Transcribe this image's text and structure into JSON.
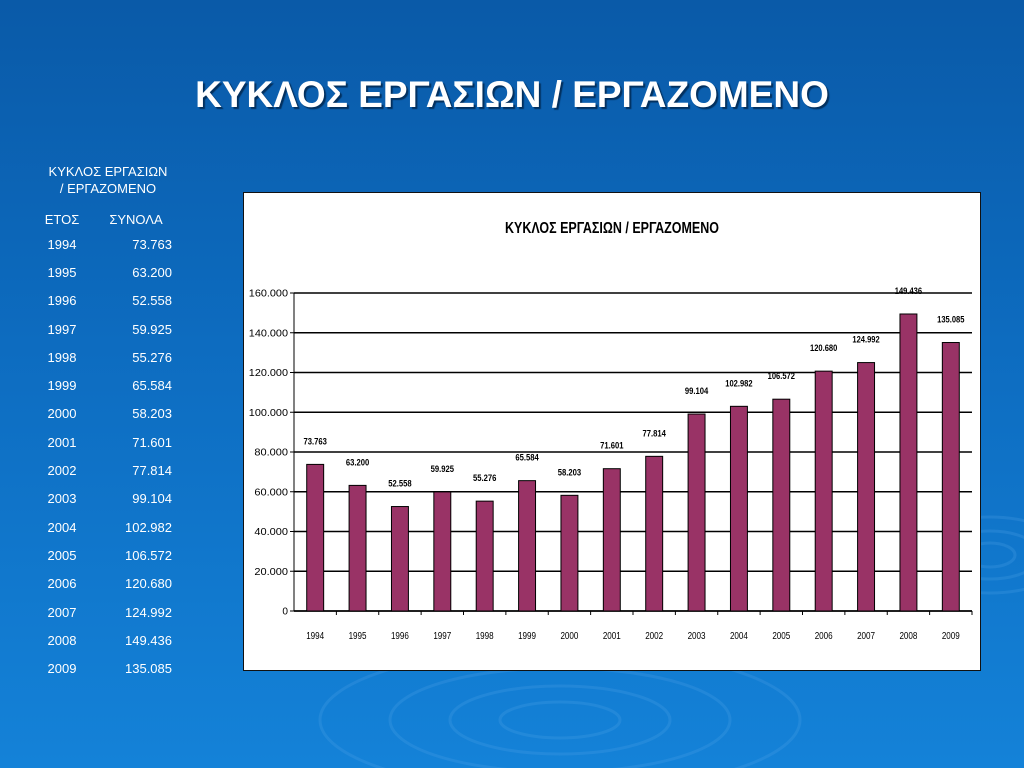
{
  "slide": {
    "title": "ΚΥΚΛΟΣ ΕΡΓΑΣΙΩΝ / ΕΡΓΑΖΟΜΕΝΟ"
  },
  "table": {
    "caption_line1": "ΚΥΚΛΟΣ ΕΡΓΑΣΙΩΝ",
    "caption_line2": "/ ΕΡΓΑΖΟΜΕΝΟ",
    "header_year": "ΕΤΟΣ",
    "header_total": "ΣΥΝΟΛΑ",
    "rows": [
      {
        "year": "1994",
        "total": "73.763"
      },
      {
        "year": "1995",
        "total": "63.200"
      },
      {
        "year": "1996",
        "total": "52.558"
      },
      {
        "year": "1997",
        "total": "59.925"
      },
      {
        "year": "1998",
        "total": "55.276"
      },
      {
        "year": "1999",
        "total": "65.584"
      },
      {
        "year": "2000",
        "total": "58.203"
      },
      {
        "year": "2001",
        "total": "71.601"
      },
      {
        "year": "2002",
        "total": "77.814"
      },
      {
        "year": "2003",
        "total": "99.104"
      },
      {
        "year": "2004",
        "total": "102.982"
      },
      {
        "year": "2005",
        "total": "106.572"
      },
      {
        "year": "2006",
        "total": "120.680"
      },
      {
        "year": "2007",
        "total": "124.992"
      },
      {
        "year": "2008",
        "total": "149.436"
      },
      {
        "year": "2009",
        "total": "135.085"
      }
    ]
  },
  "chart_data": {
    "type": "bar",
    "title": "ΚΥΚΛΟΣ ΕΡΓΑΣΙΩΝ / ΕΡΓΑΖΟΜΕΝΟ",
    "xlabel": "",
    "ylabel": "",
    "categories": [
      "1994",
      "1995",
      "1996",
      "1997",
      "1998",
      "1999",
      "2000",
      "2001",
      "2002",
      "2003",
      "2004",
      "2005",
      "2006",
      "2007",
      "2008",
      "2009"
    ],
    "values": [
      73763,
      63200,
      52558,
      59925,
      55276,
      65584,
      58203,
      71601,
      77814,
      99104,
      102982,
      106572,
      120680,
      124992,
      149436,
      135085
    ],
    "data_labels": [
      "73.763",
      "63.200",
      "52.558",
      "59.925",
      "55.276",
      "65.584",
      "58.203",
      "71.601",
      "77.814",
      "99.104",
      "102.982",
      "106.572",
      "120.680",
      "124.992",
      "149.436",
      "135.085"
    ],
    "ylim": [
      0,
      160000
    ],
    "yticks": [
      0,
      20000,
      40000,
      60000,
      80000,
      100000,
      120000,
      140000,
      160000
    ],
    "ytick_labels": [
      "0",
      "20.000",
      "40.000",
      "60.000",
      "80.000",
      "100.000",
      "120.000",
      "140.000",
      "160.000"
    ],
    "grid": true,
    "legend": "none",
    "bar_color": "#993366",
    "bar_edge_color": "#000000"
  },
  "colors": {
    "background": "#0d6cc0",
    "title_text": "#ffffff"
  }
}
